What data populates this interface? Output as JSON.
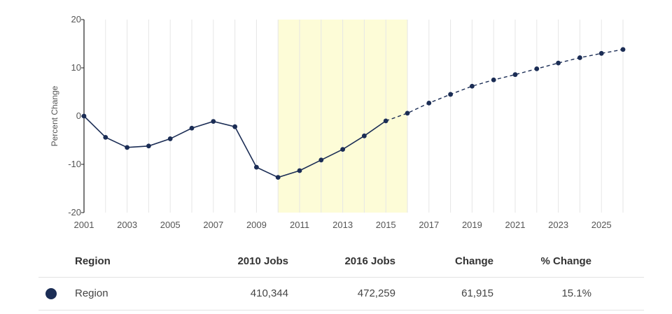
{
  "chart_data": {
    "type": "line",
    "ylabel": "Percent Change",
    "ylim": [
      -20,
      20
    ],
    "y_ticks": [
      "20",
      "10",
      "0",
      "-10",
      "-20"
    ],
    "x_ticks": [
      "2001",
      "2003",
      "2005",
      "2007",
      "2009",
      "2011",
      "2013",
      "2015",
      "2017",
      "2019",
      "2021",
      "2023",
      "2025"
    ],
    "xlim": [
      2001,
      2026
    ],
    "highlight_range": [
      2010,
      2016
    ],
    "series": [
      {
        "values": [
          {
            "x": 2001,
            "y": 0.0,
            "projected": false
          },
          {
            "x": 2002,
            "y": -4.4,
            "projected": false
          },
          {
            "x": 2003,
            "y": -6.5,
            "projected": false
          },
          {
            "x": 2004,
            "y": -6.2,
            "projected": false
          },
          {
            "x": 2005,
            "y": -4.7,
            "projected": false
          },
          {
            "x": 2006,
            "y": -2.5,
            "projected": false
          },
          {
            "x": 2007,
            "y": -1.1,
            "projected": false
          },
          {
            "x": 2008,
            "y": -2.2,
            "projected": false
          },
          {
            "x": 2009,
            "y": -10.6,
            "projected": false
          },
          {
            "x": 2010,
            "y": -12.7,
            "projected": false
          },
          {
            "x": 2011,
            "y": -11.3,
            "projected": false
          },
          {
            "x": 2012,
            "y": -9.1,
            "projected": false
          },
          {
            "x": 2013,
            "y": -6.9,
            "projected": false
          },
          {
            "x": 2014,
            "y": -4.1,
            "projected": false
          },
          {
            "x": 2015,
            "y": -1.0,
            "projected": false
          },
          {
            "x": 2016,
            "y": 0.6,
            "projected": true
          },
          {
            "x": 2017,
            "y": 2.7,
            "projected": true
          },
          {
            "x": 2018,
            "y": 4.5,
            "projected": true
          },
          {
            "x": 2019,
            "y": 6.2,
            "projected": true
          },
          {
            "x": 2020,
            "y": 7.5,
            "projected": true
          },
          {
            "x": 2021,
            "y": 8.6,
            "projected": true
          },
          {
            "x": 2022,
            "y": 9.8,
            "projected": true
          },
          {
            "x": 2023,
            "y": 11.0,
            "projected": true
          },
          {
            "x": 2024,
            "y": 12.1,
            "projected": true
          },
          {
            "x": 2025,
            "y": 13.0,
            "projected": true
          },
          {
            "x": 2026,
            "y": 13.8,
            "projected": true
          }
        ]
      }
    ],
    "grid": "vertical"
  },
  "colors": {
    "series": "#1b2d55",
    "highlight": "#fdfcd7",
    "grid": "#e6e6e6",
    "axis": "#222222"
  },
  "table": {
    "headers": {
      "region": "Region",
      "jobs_2010": "2010 Jobs",
      "jobs_2016": "2016 Jobs",
      "change": "Change",
      "pct_change": "% Change"
    },
    "rows": [
      {
        "region": "Region",
        "jobs_2010": "410,344",
        "jobs_2016": "472,259",
        "change": "61,915",
        "pct_change": "15.1%",
        "color": "#1b2d55"
      }
    ]
  }
}
